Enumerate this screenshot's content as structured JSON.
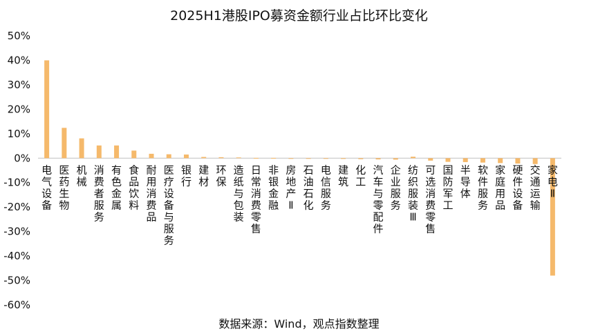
{
  "chart_data": {
    "type": "bar",
    "title": "2025H1港股IPO募资金额行业占比环比变化",
    "source": "数据来源：Wind，观点指数整理",
    "xlabel": "",
    "ylabel": "",
    "ylim": [
      -60,
      50
    ],
    "ytick_step": 10,
    "ytick_labels": [
      "50%",
      "40%",
      "30%",
      "20%",
      "10%",
      "0%",
      "-10%",
      "-20%",
      "-30%",
      "-40%",
      "-50%",
      "-60%"
    ],
    "bar_color": "#F5B96B",
    "grid": false,
    "legend": "none",
    "categories": [
      "电气设备",
      "医药生物",
      "机械",
      "消费者服务",
      "有色金属",
      "食品饮料",
      "耐用消费品",
      "医疗设备与服务",
      "银行",
      "建材",
      "环保",
      "造纸与包装",
      "日常消费零售",
      "非银金融",
      "房地产Ⅱ",
      "石油石化",
      "电信服务",
      "建筑",
      "化工",
      "汽车与零配件",
      "企业服务",
      "纺织服装Ⅲ",
      "可选消费零售",
      "国防军工",
      "半导体",
      "软件服务",
      "家庭用品",
      "硬件设备",
      "交通运输",
      "家电Ⅱ"
    ],
    "values": [
      40.0,
      12.4,
      8.1,
      5.2,
      5.2,
      3.1,
      1.8,
      1.6,
      1.5,
      0.5,
      0.4,
      0.3,
      0.1,
      0.1,
      0.0,
      0.0,
      -0.2,
      -0.3,
      -0.4,
      -0.5,
      -0.6,
      0.6,
      -1.0,
      -1.5,
      -1.6,
      -1.8,
      -2.0,
      -2.2,
      -2.4,
      -48.0
    ]
  }
}
